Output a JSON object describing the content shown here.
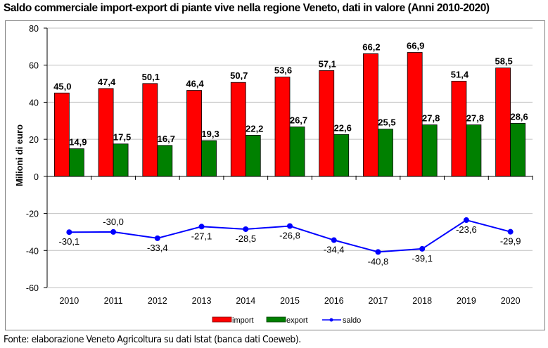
{
  "title": "Saldo commerciale import-export di piante vive nella regione Veneto, dati in valore (Anni 2010-2020)",
  "footer": "Fonte: elaborazione Veneto Agricoltura su dati Istat (banca dati Coeweb).",
  "colors": {
    "import": "#ff0000",
    "export": "#008000",
    "saldo": "#0000ff",
    "grid": "#c0c0c0",
    "axis": "#000000"
  },
  "chart_data": {
    "type": "bar",
    "title": "Saldo commerciale import-export di piante vive nella regione Veneto, dati in valore (Anni 2010-2020)",
    "xlabel": "",
    "ylabel": "Milioni di euro",
    "ylim": [
      -60,
      80
    ],
    "yticks": [
      80,
      60,
      40,
      20,
      0,
      -20,
      -40,
      -60
    ],
    "ytick_labels": [
      "80",
      "60",
      "40",
      "20",
      "0",
      "-20",
      "-40",
      "-60"
    ],
    "grid": true,
    "legend_position": "bottom",
    "categories": [
      "2010",
      "2011",
      "2012",
      "2013",
      "2014",
      "2015",
      "2016",
      "2017",
      "2018",
      "2019",
      "2020"
    ],
    "series": [
      {
        "name": "import",
        "type": "bar",
        "values": [
          45.0,
          47.4,
          50.1,
          46.4,
          50.7,
          53.6,
          57.1,
          66.2,
          66.9,
          51.4,
          58.5
        ],
        "labels": [
          "45,0",
          "47,4",
          "50,1",
          "46,4",
          "50,7",
          "53,6",
          "57,1",
          "66,2",
          "66,9",
          "51,4",
          "58,5"
        ]
      },
      {
        "name": "export",
        "type": "bar",
        "values": [
          14.9,
          17.5,
          16.7,
          19.3,
          22.2,
          26.7,
          22.6,
          25.5,
          27.8,
          27.8,
          28.6
        ],
        "labels": [
          "14,9",
          "17,5",
          "16,7",
          "19,3",
          "22,2",
          "26,7",
          "22,6",
          "25,5",
          "27,8",
          "27,8",
          "28,6"
        ]
      },
      {
        "name": "saldo",
        "type": "line",
        "values": [
          -30.1,
          -30.0,
          -33.4,
          -27.1,
          -28.5,
          -26.8,
          -34.4,
          -40.8,
          -39.1,
          -23.6,
          -29.9
        ],
        "labels": [
          "-30,1",
          "-30,0",
          "-33,4",
          "-27,1",
          "-28,5",
          "-26,8",
          "-34,4",
          "-40,8",
          "-39,1",
          "-23,6",
          "-29,9"
        ],
        "label_positions": [
          "below",
          "above",
          "below",
          "below",
          "below",
          "below",
          "below",
          "below",
          "below",
          "below",
          "below"
        ]
      }
    ]
  }
}
